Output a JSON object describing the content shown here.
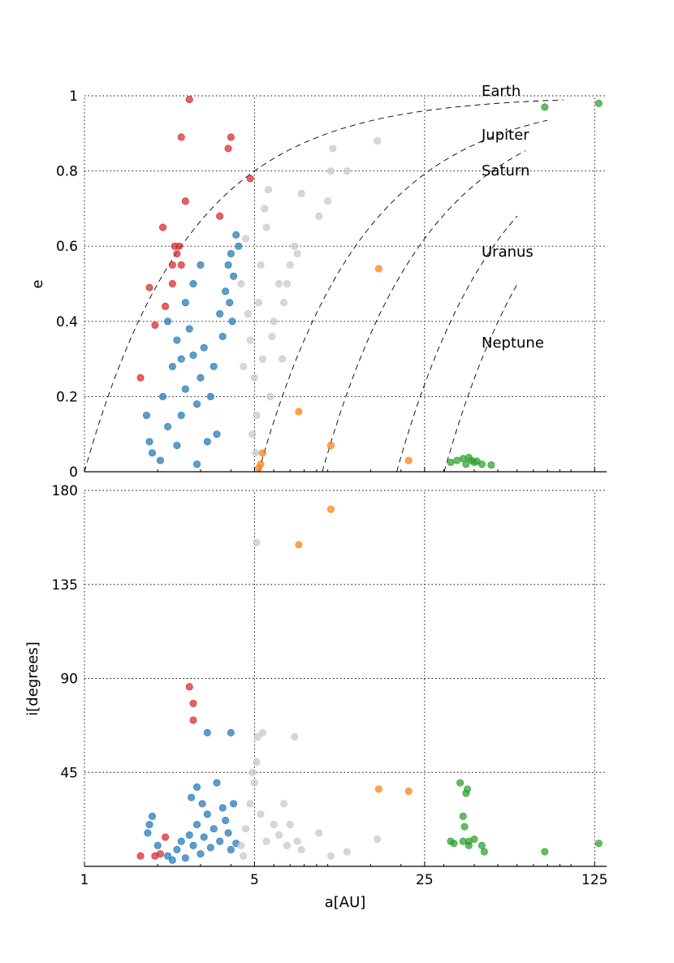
{
  "chart_data": [
    {
      "type": "scatter",
      "panel": "top",
      "xlabel": "",
      "ylabel": "e",
      "xscale": "log",
      "xlim": [
        1,
        140
      ],
      "ylim": [
        0,
        1
      ],
      "xticks": [
        1,
        5,
        25,
        125
      ],
      "xtick_labels": [],
      "yticks": [
        0,
        0.2,
        0.4,
        0.6,
        0.8,
        1
      ],
      "ytick_labels": [
        "0",
        "0.2",
        "0.4",
        "0.6",
        "0.8",
        "1"
      ],
      "grid": true,
      "planet_labels": [
        "Earth",
        "Jupiter",
        "Saturn",
        "Uranus",
        "Neptune"
      ],
      "perihelion_curves": [
        {
          "planet": "Earth",
          "q": 1.0,
          "a_max": 93
        },
        {
          "planet": "Jupiter",
          "q": 5.2,
          "a_max": 80
        },
        {
          "planet": "Saturn",
          "q": 9.5,
          "a_max": 65
        },
        {
          "planet": "Uranus",
          "q": 19.2,
          "a_max": 60
        },
        {
          "planet": "Neptune",
          "q": 30.1,
          "a_max": 60
        }
      ],
      "series": [
        {
          "color": "#1f77b4",
          "points": [
            [
              2.05,
              0.03
            ],
            [
              2.2,
              0.12
            ],
            [
              2.3,
              0.28
            ],
            [
              2.4,
              0.35
            ],
            [
              2.5,
              0.15
            ],
            [
              2.6,
              0.22
            ],
            [
              2.7,
              0.38
            ],
            [
              2.8,
              0.31
            ],
            [
              2.9,
              0.18
            ],
            [
              3.0,
              0.25
            ],
            [
              3.1,
              0.33
            ],
            [
              3.2,
              0.08
            ],
            [
              3.3,
              0.2
            ],
            [
              3.4,
              0.28
            ],
            [
              3.6,
              0.42
            ],
            [
              3.8,
              0.48
            ],
            [
              3.9,
              0.55
            ],
            [
              4.0,
              0.58
            ],
            [
              4.1,
              0.52
            ],
            [
              4.2,
              0.63
            ],
            [
              4.3,
              0.6
            ],
            [
              2.6,
              0.45
            ],
            [
              2.8,
              0.5
            ],
            [
              3.0,
              0.55
            ],
            [
              2.4,
              0.07
            ],
            [
              2.9,
              0.02
            ],
            [
              3.5,
              0.1
            ],
            [
              1.85,
              0.08
            ],
            [
              1.8,
              0.15
            ],
            [
              1.9,
              0.05
            ],
            [
              2.1,
              0.2
            ],
            [
              2.2,
              0.4
            ],
            [
              2.5,
              0.3
            ],
            [
              3.7,
              0.36
            ],
            [
              3.95,
              0.45
            ],
            [
              4.05,
              0.4
            ]
          ]
        },
        {
          "color": "#c7c7c7",
          "points": [
            [
              4.4,
              0.5
            ],
            [
              4.6,
              0.62
            ],
            [
              4.8,
              0.35
            ],
            [
              5.0,
              0.25
            ],
            [
              5.1,
              0.15
            ],
            [
              5.2,
              0.45
            ],
            [
              5.3,
              0.55
            ],
            [
              5.4,
              0.3
            ],
            [
              5.5,
              0.7
            ],
            [
              5.7,
              0.75
            ],
            [
              6.0,
              0.4
            ],
            [
              6.3,
              0.5
            ],
            [
              6.6,
              0.45
            ],
            [
              7.0,
              0.55
            ],
            [
              7.3,
              0.6
            ],
            [
              7.8,
              0.74
            ],
            [
              9.2,
              0.68
            ],
            [
              10.0,
              0.72
            ],
            [
              10.3,
              0.8
            ],
            [
              10.5,
              0.86
            ],
            [
              12.0,
              0.8
            ],
            [
              16.0,
              0.88
            ],
            [
              5.05,
              0.05
            ],
            [
              4.9,
              0.1
            ],
            [
              5.8,
              0.2
            ],
            [
              6.5,
              0.3
            ],
            [
              4.5,
              0.28
            ],
            [
              4.7,
              0.42
            ],
            [
              5.6,
              0.65
            ],
            [
              6.8,
              0.5
            ],
            [
              7.5,
              0.58
            ],
            [
              5.9,
              0.36
            ]
          ]
        },
        {
          "color": "#ff7f0e",
          "points": [
            [
              5.2,
              0.01
            ],
            [
              5.3,
              0.02
            ],
            [
              5.4,
              0.05
            ],
            [
              7.6,
              0.16
            ],
            [
              10.3,
              0.07
            ],
            [
              16.2,
              0.54
            ],
            [
              21.5,
              0.03
            ]
          ]
        },
        {
          "color": "#d62728",
          "points": [
            [
              1.7,
              0.25
            ],
            [
              1.95,
              0.39
            ],
            [
              2.15,
              0.44
            ],
            [
              1.85,
              0.49
            ],
            [
              2.1,
              0.65
            ],
            [
              2.3,
              0.55
            ],
            [
              2.4,
              0.58
            ],
            [
              2.5,
              0.55
            ],
            [
              2.45,
              0.6
            ],
            [
              2.3,
              0.5
            ],
            [
              2.6,
              0.72
            ],
            [
              2.5,
              0.89
            ],
            [
              2.7,
              0.99
            ],
            [
              3.6,
              0.68
            ],
            [
              3.9,
              0.86
            ],
            [
              4.0,
              0.89
            ],
            [
              4.8,
              0.78
            ],
            [
              2.35,
              0.6
            ]
          ]
        },
        {
          "color": "#2ca02c",
          "points": [
            [
              32,
              0.025
            ],
            [
              34,
              0.03
            ],
            [
              36,
              0.035
            ],
            [
              37,
              0.02
            ],
            [
              38,
              0.038
            ],
            [
              39,
              0.03
            ],
            [
              40,
              0.025
            ],
            [
              41,
              0.028
            ],
            [
              43,
              0.02
            ],
            [
              47,
              0.018
            ],
            [
              78,
              0.97
            ],
            [
              130,
              0.98
            ]
          ]
        }
      ]
    },
    {
      "type": "scatter",
      "panel": "bottom",
      "xlabel": "a[AU]",
      "ylabel": "i[degrees]",
      "xscale": "log",
      "xlim": [
        1,
        140
      ],
      "ylim": [
        0,
        180
      ],
      "xticks": [
        1,
        5,
        25,
        125
      ],
      "xtick_labels": [
        "1",
        "5",
        "25",
        "125"
      ],
      "yticks": [
        45,
        90,
        135,
        180
      ],
      "ytick_labels": [
        "45",
        "90",
        "135",
        "180"
      ],
      "grid": true,
      "series": [
        {
          "color": "#1f77b4",
          "points": [
            [
              2.2,
              5
            ],
            [
              2.4,
              8
            ],
            [
              2.5,
              12
            ],
            [
              2.6,
              4
            ],
            [
              2.7,
              15
            ],
            [
              2.8,
              10
            ],
            [
              2.9,
              20
            ],
            [
              3.0,
              6
            ],
            [
              3.1,
              14
            ],
            [
              3.2,
              25
            ],
            [
              3.3,
              9
            ],
            [
              3.4,
              18
            ],
            [
              3.6,
              12
            ],
            [
              3.8,
              22
            ],
            [
              3.9,
              16
            ],
            [
              4.0,
              8
            ],
            [
              4.2,
              11
            ],
            [
              2.75,
              33
            ],
            [
              2.9,
              38
            ],
            [
              3.05,
              30
            ],
            [
              3.5,
              40
            ],
            [
              3.2,
              64
            ],
            [
              4.0,
              64
            ],
            [
              1.85,
              20
            ],
            [
              1.9,
              24
            ],
            [
              1.82,
              16
            ],
            [
              2.0,
              10
            ],
            [
              2.3,
              3
            ],
            [
              3.7,
              28
            ],
            [
              4.1,
              30
            ]
          ]
        },
        {
          "color": "#c7c7c7",
          "points": [
            [
              4.4,
              10
            ],
            [
              4.6,
              18
            ],
            [
              4.8,
              30
            ],
            [
              5.0,
              40
            ],
            [
              5.1,
              50
            ],
            [
              5.15,
              62
            ],
            [
              5.4,
              64
            ],
            [
              6.0,
              20
            ],
            [
              6.3,
              15
            ],
            [
              6.6,
              30
            ],
            [
              7.0,
              20
            ],
            [
              7.3,
              62
            ],
            [
              7.8,
              8
            ],
            [
              9.2,
              16
            ],
            [
              10.3,
              5
            ],
            [
              12.0,
              7
            ],
            [
              16.0,
              13
            ],
            [
              5.1,
              155
            ],
            [
              4.9,
              45
            ],
            [
              5.3,
              25
            ],
            [
              5.6,
              12
            ],
            [
              6.8,
              10
            ],
            [
              4.5,
              5
            ],
            [
              7.5,
              12
            ]
          ]
        },
        {
          "color": "#ff7f0e",
          "points": [
            [
              7.6,
              154
            ],
            [
              10.3,
              171
            ],
            [
              16.2,
              37
            ],
            [
              21.5,
              36
            ]
          ]
        },
        {
          "color": "#d62728",
          "points": [
            [
              1.7,
              5
            ],
            [
              1.95,
              5
            ],
            [
              2.05,
              6
            ],
            [
              2.15,
              14
            ],
            [
              2.7,
              86
            ],
            [
              2.8,
              78
            ],
            [
              2.8,
              70
            ]
          ]
        },
        {
          "color": "#2ca02c",
          "points": [
            [
              32,
              12
            ],
            [
              33,
              11
            ],
            [
              35,
              40
            ],
            [
              36,
              24
            ],
            [
              36.5,
              19
            ],
            [
              37,
              35
            ],
            [
              37.5,
              37
            ],
            [
              38,
              10
            ],
            [
              36,
              12
            ],
            [
              38,
              12
            ],
            [
              40,
              13
            ],
            [
              43,
              10
            ],
            [
              44,
              7
            ],
            [
              78,
              7
            ],
            [
              130,
              11
            ]
          ]
        }
      ]
    }
  ]
}
